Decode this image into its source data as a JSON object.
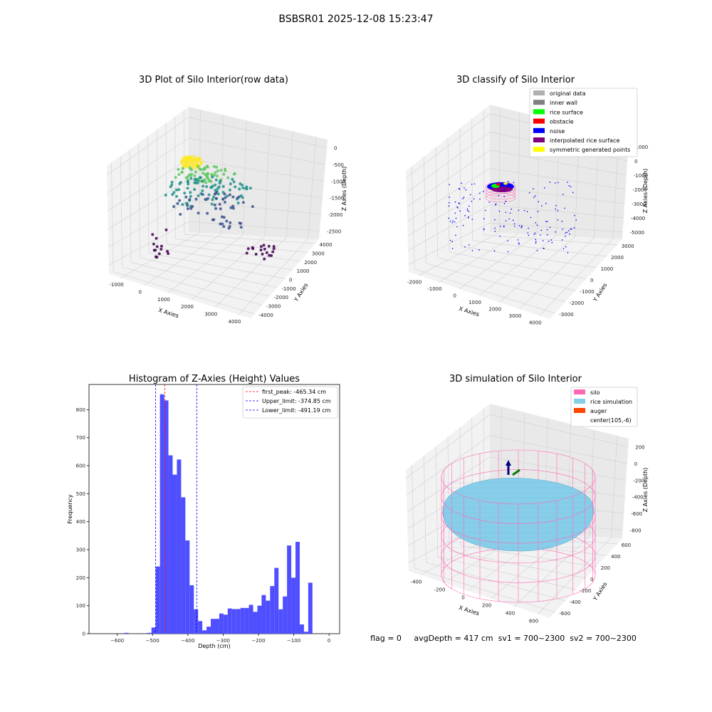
{
  "figure": {
    "suptitle": "BSBSR01 2025-12-08 15:23:47",
    "status_line": "flag = 0     avgDepth = 417 cm  sv1 = 700~2300  sv2 = 700~2300"
  },
  "chart_data": [
    {
      "type": "scatter",
      "subtype": "3d",
      "title": "3D Plot of Silo Interior(row data)",
      "xlabel": "X Axies",
      "ylabel": "Y Axies",
      "zlabel": "Z Axies (Depth)",
      "x_ticks": [
        "-1000",
        "0",
        "1000",
        "2000",
        "3000",
        "4000"
      ],
      "y_ticks": [
        "-4000",
        "-3000",
        "-2000",
        "-1000",
        "0",
        "1000",
        "2000",
        "3000",
        "4000"
      ],
      "z_ticks": [
        "-2500",
        "-2000",
        "-1500",
        "-1000",
        "-500",
        "0"
      ],
      "colormap": [
        "#440154",
        "#3b528b",
        "#21918c",
        "#5ec962",
        "#fde725"
      ],
      "grid": true
    },
    {
      "type": "scatter",
      "subtype": "3d",
      "title": "3D classify of Silo Interior",
      "xlabel": "X Axies",
      "ylabel": "Y Axies",
      "zlabel": "Z Axies (Depth)",
      "x_ticks": [
        "-2000",
        "-1000",
        "0",
        "1000",
        "2000",
        "3000",
        "4000"
      ],
      "y_ticks": [
        "-3000",
        "-2000",
        "-1000",
        "0",
        "1000",
        "2000",
        "3000"
      ],
      "z_ticks": [
        "-5000",
        "-4000",
        "-3000",
        "-2000",
        "-1000",
        "0",
        "1000"
      ],
      "legend_position": "top-right",
      "legend": [
        {
          "label": "original data",
          "color": "#b0b0b0"
        },
        {
          "label": "inner wall",
          "color": "#808080"
        },
        {
          "label": "rice surface",
          "color": "#00ff00"
        },
        {
          "label": "obstacle",
          "color": "#ff0000"
        },
        {
          "label": "noise",
          "color": "#0000ff"
        },
        {
          "label": "interpolated rice surface",
          "color": "#800080"
        },
        {
          "label": "symmetric generated points",
          "color": "#ffff00"
        }
      ],
      "grid": true
    },
    {
      "type": "bar",
      "subtype": "histogram",
      "title": "Histogram of Z-Axies (Height) Values",
      "xlabel": "Depth (cm)",
      "ylabel": "Frequency",
      "xlim": [
        -680,
        30
      ],
      "ylim": [
        0,
        890
      ],
      "x_ticks": [
        -600,
        -500,
        -400,
        -300,
        -200,
        -100,
        0
      ],
      "y_ticks": [
        0,
        100,
        200,
        300,
        400,
        500,
        600,
        700,
        800
      ],
      "bar_color": "#4f4fff",
      "bins": [
        {
          "x0": -580,
          "x1": -568,
          "value": 3
        },
        {
          "x0": -515,
          "x1": -503,
          "value": 3
        },
        {
          "x0": -503,
          "x1": -491,
          "value": 22
        },
        {
          "x0": -491,
          "x1": -479,
          "value": 240
        },
        {
          "x0": -479,
          "x1": -467,
          "value": 855
        },
        {
          "x0": -467,
          "x1": -455,
          "value": 833
        },
        {
          "x0": -455,
          "x1": -443,
          "value": 637
        },
        {
          "x0": -443,
          "x1": -431,
          "value": 568
        },
        {
          "x0": -431,
          "x1": -419,
          "value": 622
        },
        {
          "x0": -419,
          "x1": -407,
          "value": 487
        },
        {
          "x0": -407,
          "x1": -395,
          "value": 333
        },
        {
          "x0": -395,
          "x1": -383,
          "value": 173
        },
        {
          "x0": -383,
          "x1": -371,
          "value": 87
        },
        {
          "x0": -371,
          "x1": -359,
          "value": 45
        },
        {
          "x0": -359,
          "x1": -347,
          "value": 12
        },
        {
          "x0": -347,
          "x1": -335,
          "value": 25
        },
        {
          "x0": -335,
          "x1": -323,
          "value": 53
        },
        {
          "x0": -323,
          "x1": -311,
          "value": 53
        },
        {
          "x0": -311,
          "x1": -299,
          "value": 72
        },
        {
          "x0": -299,
          "x1": -287,
          "value": 68
        },
        {
          "x0": -287,
          "x1": -275,
          "value": 90
        },
        {
          "x0": -275,
          "x1": -263,
          "value": 88
        },
        {
          "x0": -263,
          "x1": -251,
          "value": 88
        },
        {
          "x0": -251,
          "x1": -239,
          "value": 92
        },
        {
          "x0": -239,
          "x1": -227,
          "value": 92
        },
        {
          "x0": -227,
          "x1": -215,
          "value": 103
        },
        {
          "x0": -215,
          "x1": -203,
          "value": 78
        },
        {
          "x0": -203,
          "x1": -191,
          "value": 100
        },
        {
          "x0": -191,
          "x1": -179,
          "value": 138
        },
        {
          "x0": -179,
          "x1": -167,
          "value": 118
        },
        {
          "x0": -167,
          "x1": -155,
          "value": 170
        },
        {
          "x0": -155,
          "x1": -143,
          "value": 235
        },
        {
          "x0": -143,
          "x1": -131,
          "value": 87
        },
        {
          "x0": -131,
          "x1": -119,
          "value": 133
        },
        {
          "x0": -119,
          "x1": -107,
          "value": 315
        },
        {
          "x0": -107,
          "x1": -95,
          "value": 200
        },
        {
          "x0": -95,
          "x1": -83,
          "value": 328
        },
        {
          "x0": -83,
          "x1": -71,
          "value": 33
        },
        {
          "x0": -71,
          "x1": -59,
          "value": 7
        },
        {
          "x0": -59,
          "x1": -47,
          "value": 182
        }
      ],
      "vlines": [
        {
          "label": "first_peak: -465.34 cm",
          "x": -465.34,
          "color": "#ff0000"
        },
        {
          "label": "Upper_limit: -374.85 cm",
          "x": -374.85,
          "color": "#0000ff"
        },
        {
          "label": "Lower_limit: -491.19 cm",
          "x": -491.19,
          "color": "#0000ff"
        }
      ],
      "legend_position": "top-right"
    },
    {
      "type": "surface",
      "subtype": "3d",
      "title": "3D simulation of Silo Interior",
      "xlabel": "X Axies",
      "ylabel": "Y Axies",
      "zlabel": "Z Axies (Depth)",
      "x_ticks": [
        "-400",
        "-200",
        "0",
        "200",
        "400",
        "600"
      ],
      "y_ticks": [
        "-600",
        "-400",
        "-200",
        "0",
        "200",
        "400",
        "600"
      ],
      "z_ticks": [
        "-800",
        "-600",
        "-400",
        "-200",
        "0",
        "200"
      ],
      "legend_position": "top-right",
      "legend": [
        {
          "label": "silo",
          "color": "#ff69b4"
        },
        {
          "label": "rice simulation",
          "color": "#87ceeb"
        },
        {
          "label": "auger",
          "color": "#ff4500"
        },
        {
          "label": "center(105,-6)",
          "color": "#ffffff"
        }
      ],
      "grid": true
    }
  ]
}
